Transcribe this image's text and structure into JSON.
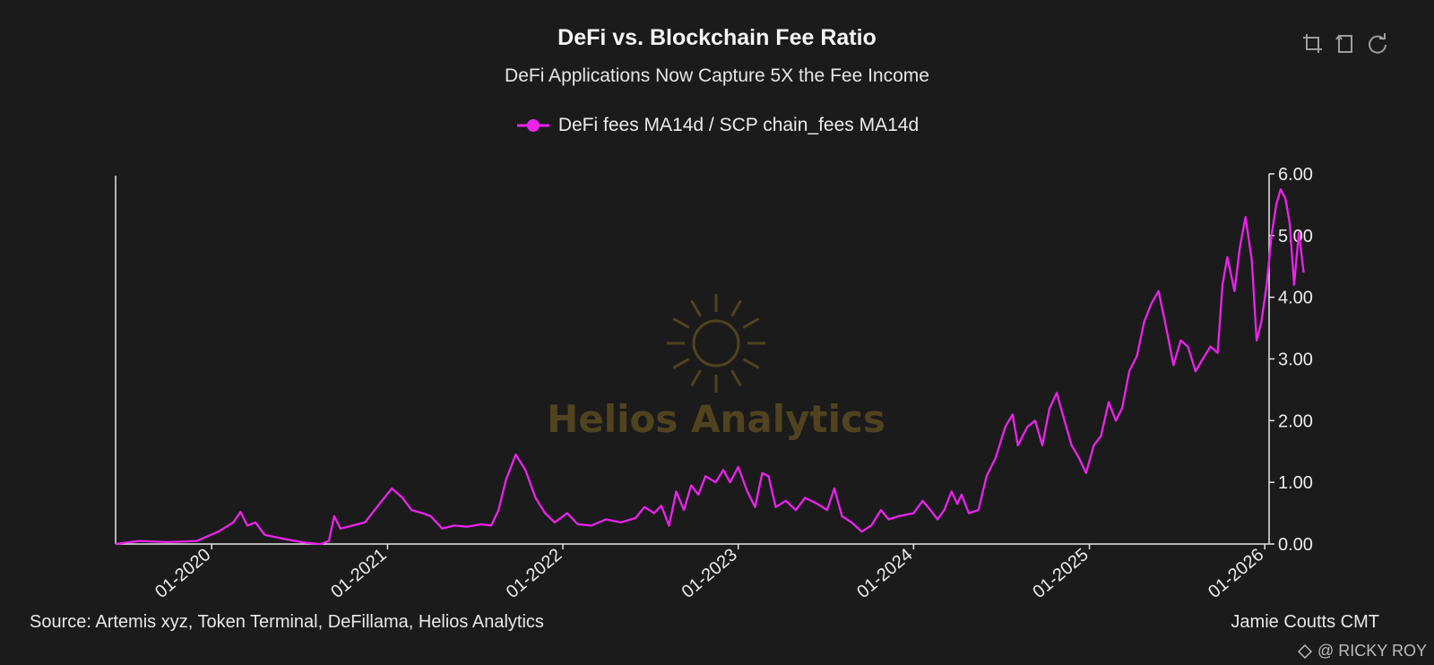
{
  "title": "DeFi vs. Blockchain Fee Ratio",
  "subtitle": "DeFi Applications Now Capture 5X the Fee Income",
  "legend_label": "DeFi fees MA14d / SCP chain_fees MA14d",
  "watermark": "Helios Analytics",
  "source": "Source: Artemis xyz, Token Terminal, DeFillama, Helios Analytics",
  "author": "Jamie Coutts CMT",
  "credit": "@ RICKY ROY",
  "toolbar": {
    "icons": [
      "crop-icon",
      "undo-crop-icon",
      "reset-icon"
    ]
  },
  "colors": {
    "background": "#1b1b1c",
    "series": "#ee22ee",
    "axis": "#e6e6e6",
    "watermark": "#5a4a1f"
  },
  "chart_data": {
    "type": "line",
    "ylim": [
      0,
      6
    ],
    "xlim": [
      "2019-06-15",
      "2026-01-10"
    ],
    "yticks": [
      "0.00",
      "1.00",
      "2.00",
      "3.00",
      "4.00",
      "5.00",
      "6.00"
    ],
    "xticks": [
      "01-2020",
      "01-2021",
      "01-2022",
      "01-2023",
      "01-2024",
      "01-2025",
      "01-2026"
    ],
    "series": [
      {
        "name": "DeFi fees MA14d / SCP chain_fees MA14d",
        "points": [
          [
            "2019-06-15",
            0.0
          ],
          [
            "2019-08-01",
            0.05
          ],
          [
            "2019-10-01",
            0.03
          ],
          [
            "2019-12-01",
            0.05
          ],
          [
            "2020-01-15",
            0.2
          ],
          [
            "2020-02-15",
            0.35
          ],
          [
            "2020-03-01",
            0.52
          ],
          [
            "2020-03-15",
            0.3
          ],
          [
            "2020-04-01",
            0.35
          ],
          [
            "2020-04-20",
            0.15
          ],
          [
            "2020-06-01",
            0.08
          ],
          [
            "2020-07-15",
            0.02
          ],
          [
            "2020-08-15",
            0.0
          ],
          [
            "2020-09-01",
            0.05
          ],
          [
            "2020-09-12",
            0.45
          ],
          [
            "2020-09-25",
            0.25
          ],
          [
            "2020-10-20",
            0.3
          ],
          [
            "2020-11-15",
            0.35
          ],
          [
            "2020-12-15",
            0.65
          ],
          [
            "2021-01-10",
            0.9
          ],
          [
            "2021-02-01",
            0.75
          ],
          [
            "2021-02-20",
            0.55
          ],
          [
            "2021-03-15",
            0.5
          ],
          [
            "2021-04-01",
            0.45
          ],
          [
            "2021-04-25",
            0.25
          ],
          [
            "2021-05-20",
            0.3
          ],
          [
            "2021-06-15",
            0.28
          ],
          [
            "2021-07-15",
            0.32
          ],
          [
            "2021-08-05",
            0.3
          ],
          [
            "2021-08-20",
            0.55
          ],
          [
            "2021-09-05",
            1.05
          ],
          [
            "2021-09-25",
            1.45
          ],
          [
            "2021-10-15",
            1.2
          ],
          [
            "2021-11-05",
            0.75
          ],
          [
            "2021-11-25",
            0.5
          ],
          [
            "2021-12-15",
            0.35
          ],
          [
            "2022-01-10",
            0.5
          ],
          [
            "2022-02-01",
            0.32
          ],
          [
            "2022-03-01",
            0.3
          ],
          [
            "2022-04-01",
            0.4
          ],
          [
            "2022-05-01",
            0.35
          ],
          [
            "2022-06-01",
            0.42
          ],
          [
            "2022-06-20",
            0.6
          ],
          [
            "2022-07-10",
            0.5
          ],
          [
            "2022-07-25",
            0.62
          ],
          [
            "2022-08-10",
            0.3
          ],
          [
            "2022-08-25",
            0.85
          ],
          [
            "2022-09-10",
            0.55
          ],
          [
            "2022-09-25",
            0.95
          ],
          [
            "2022-10-10",
            0.8
          ],
          [
            "2022-10-25",
            1.1
          ],
          [
            "2022-11-15",
            1.0
          ],
          [
            "2022-12-01",
            1.2
          ],
          [
            "2022-12-15",
            1.0
          ],
          [
            "2023-01-01",
            1.25
          ],
          [
            "2023-01-20",
            0.85
          ],
          [
            "2023-02-05",
            0.6
          ],
          [
            "2023-02-20",
            1.15
          ],
          [
            "2023-03-05",
            1.1
          ],
          [
            "2023-03-20",
            0.6
          ],
          [
            "2023-04-10",
            0.7
          ],
          [
            "2023-05-01",
            0.55
          ],
          [
            "2023-05-20",
            0.75
          ],
          [
            "2023-06-15",
            0.65
          ],
          [
            "2023-07-05",
            0.55
          ],
          [
            "2023-07-20",
            0.9
          ],
          [
            "2023-08-05",
            0.45
          ],
          [
            "2023-08-25",
            0.35
          ],
          [
            "2023-09-15",
            0.2
          ],
          [
            "2023-10-05",
            0.3
          ],
          [
            "2023-10-25",
            0.55
          ],
          [
            "2023-11-10",
            0.4
          ],
          [
            "2023-12-01",
            0.45
          ],
          [
            "2024-01-01",
            0.5
          ],
          [
            "2024-01-20",
            0.7
          ],
          [
            "2024-02-05",
            0.55
          ],
          [
            "2024-02-20",
            0.4
          ],
          [
            "2024-03-05",
            0.55
          ],
          [
            "2024-03-20",
            0.85
          ],
          [
            "2024-04-01",
            0.65
          ],
          [
            "2024-04-10",
            0.8
          ],
          [
            "2024-04-25",
            0.5
          ],
          [
            "2024-05-15",
            0.55
          ],
          [
            "2024-06-01",
            1.1
          ],
          [
            "2024-06-20",
            1.4
          ],
          [
            "2024-07-10",
            1.9
          ],
          [
            "2024-07-25",
            2.1
          ],
          [
            "2024-08-05",
            1.6
          ],
          [
            "2024-08-25",
            1.9
          ],
          [
            "2024-09-10",
            2.0
          ],
          [
            "2024-09-25",
            1.6
          ],
          [
            "2024-10-10",
            2.2
          ],
          [
            "2024-10-25",
            2.45
          ],
          [
            "2024-11-10",
            2.0
          ],
          [
            "2024-11-25",
            1.6
          ],
          [
            "2024-12-10",
            1.4
          ],
          [
            "2024-12-25",
            1.15
          ],
          [
            "2025-01-10",
            1.6
          ],
          [
            "2025-01-25",
            1.75
          ],
          [
            "2025-02-10",
            2.3
          ],
          [
            "2025-02-25",
            2.0
          ],
          [
            "2025-03-10",
            2.2
          ],
          [
            "2025-03-25",
            2.8
          ],
          [
            "2025-04-10",
            3.05
          ],
          [
            "2025-04-25",
            3.6
          ],
          [
            "2025-05-10",
            3.9
          ],
          [
            "2025-05-25",
            4.1
          ],
          [
            "2025-06-10",
            3.5
          ],
          [
            "2025-06-25",
            2.9
          ],
          [
            "2025-07-10",
            3.3
          ],
          [
            "2025-07-25",
            3.2
          ],
          [
            "2025-08-10",
            2.8
          ],
          [
            "2025-08-25",
            3.0
          ],
          [
            "2025-09-10",
            3.2
          ],
          [
            "2025-09-25",
            3.1
          ],
          [
            "2025-10-05",
            4.2
          ],
          [
            "2025-10-15",
            4.65
          ],
          [
            "2025-10-30",
            4.1
          ],
          [
            "2025-11-10",
            4.8
          ],
          [
            "2025-11-22",
            5.3
          ],
          [
            "2025-12-05",
            4.6
          ],
          [
            "2025-12-15",
            3.3
          ],
          [
            "2025-12-25",
            3.6
          ],
          [
            "2026-01-05",
            4.2
          ],
          [
            "2026-01-15",
            5.0
          ],
          [
            "2026-01-25",
            5.5
          ],
          [
            "2026-02-03",
            5.75
          ],
          [
            "2026-02-13",
            5.6
          ],
          [
            "2026-02-22",
            5.2
          ],
          [
            "2026-03-03",
            4.2
          ],
          [
            "2026-03-13",
            5.05
          ],
          [
            "2026-03-23",
            4.4
          ]
        ]
      }
    ]
  }
}
